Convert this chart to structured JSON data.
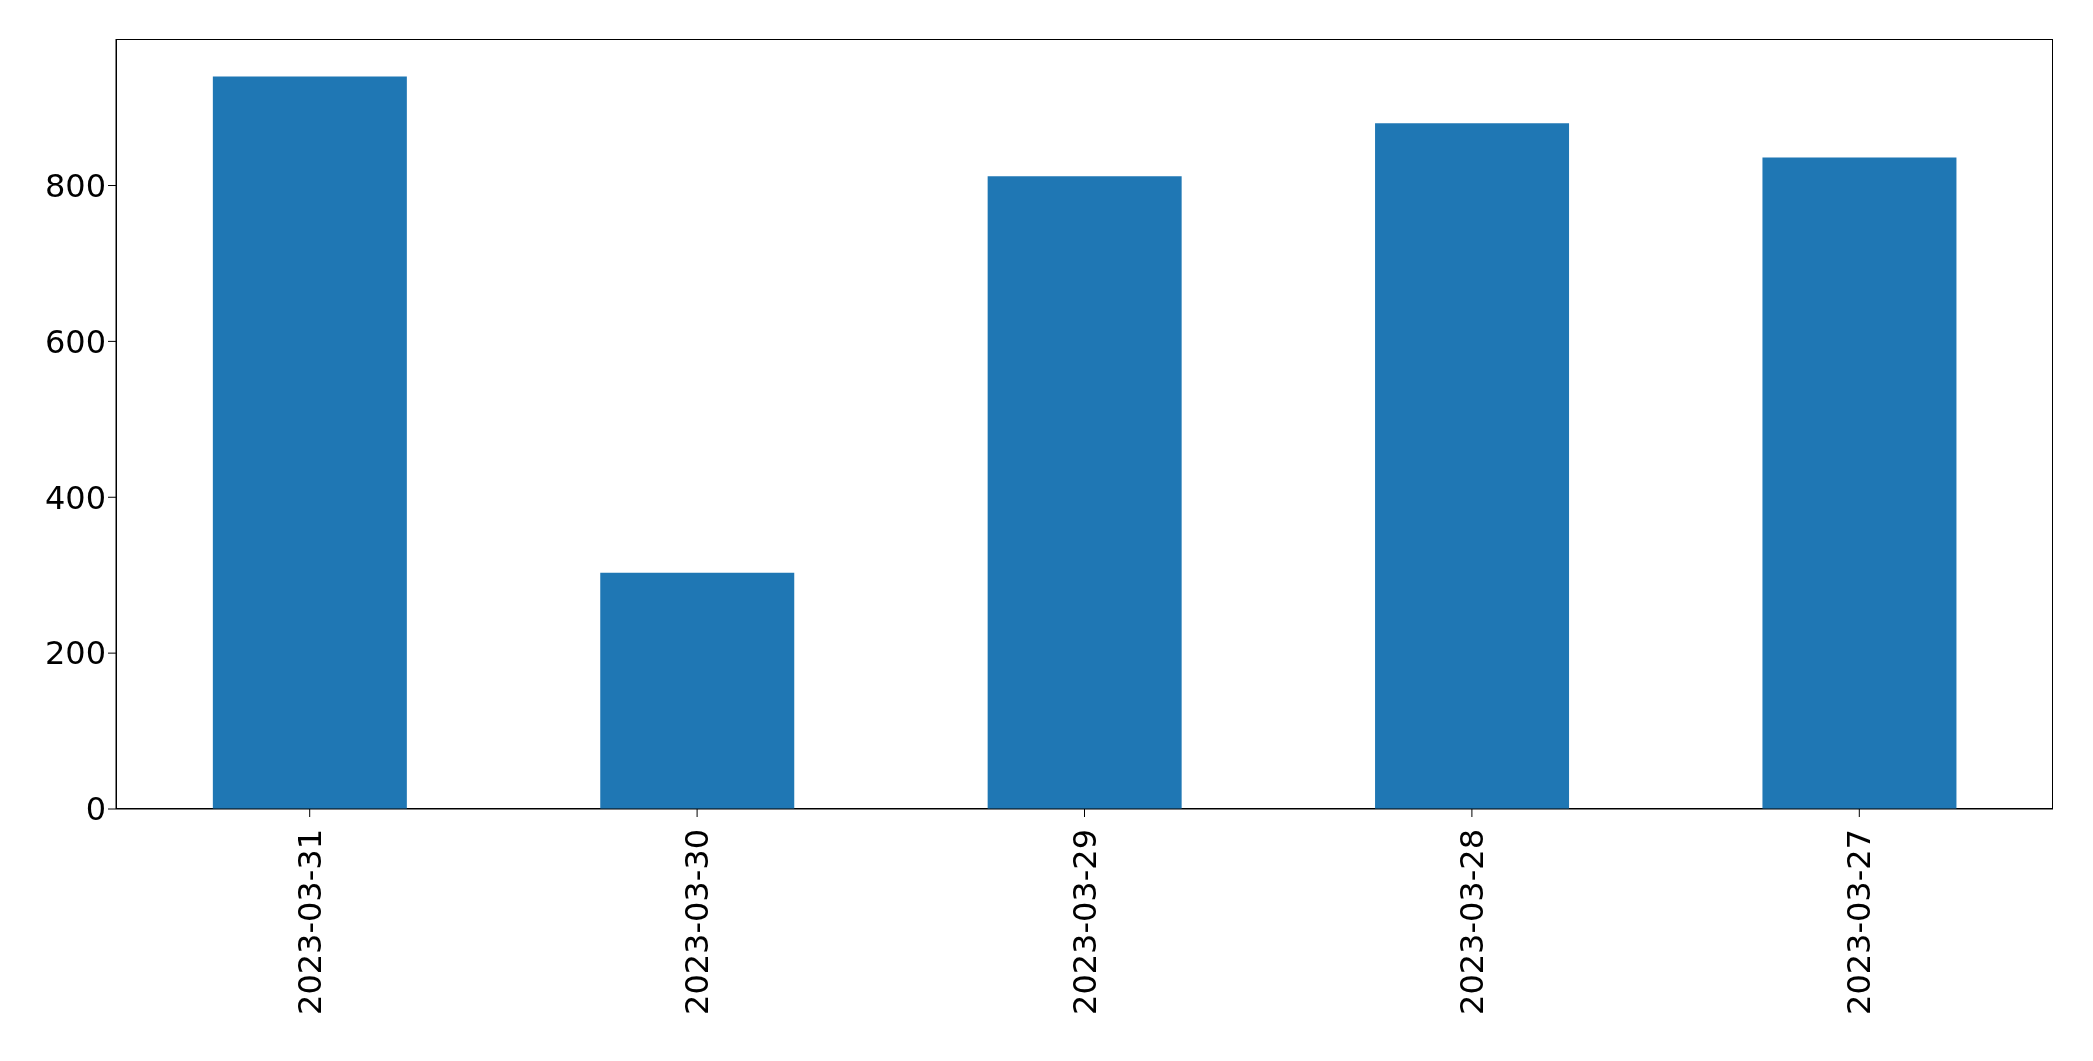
{
  "chart_data": {
    "type": "bar",
    "categories": [
      "2023-03-31",
      "2023-03-30",
      "2023-03-29",
      "2023-03-28",
      "2023-03-27"
    ],
    "values": [
      940,
      303,
      812,
      880,
      836
    ],
    "color": "#1f77b4",
    "ylim": [
      0,
      988
    ],
    "yticks": [
      0,
      200,
      400,
      600,
      800
    ],
    "grid": false
  }
}
